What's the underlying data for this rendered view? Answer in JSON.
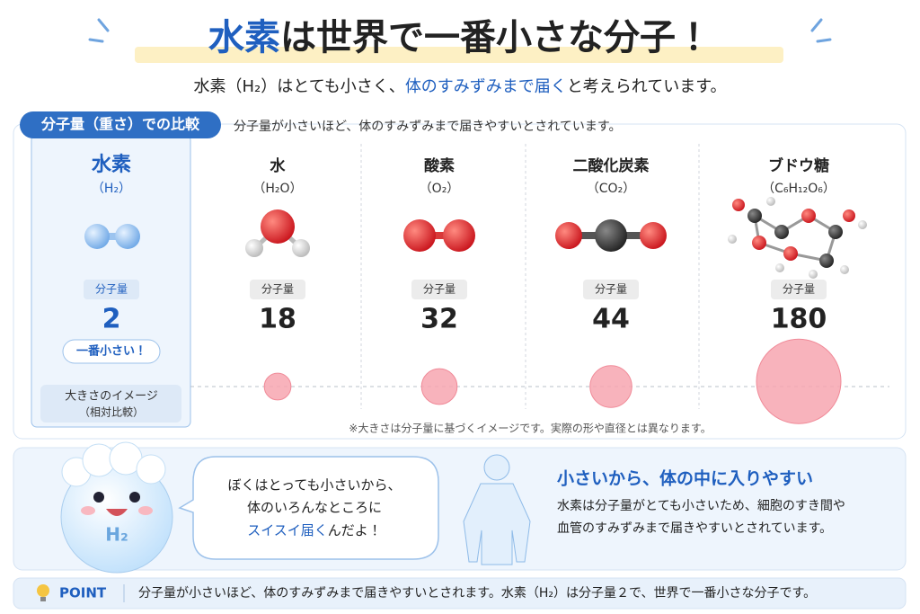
{
  "header": {
    "title_highlight": "水素",
    "title_rest": "は世界で一番小さな分子！",
    "subtitle_start": "水素（H₂）はとても小さく、",
    "subtitle_highlight": "体のすみずみまで届く",
    "subtitle_end": "と考えられています。"
  },
  "comparison": {
    "label": "分子量（重さ）での比較",
    "note": "分子量が小さいほど、体のすみずみまで届きやすいとされています。",
    "molecules": [
      {
        "name": "水素",
        "formula": "（H₂）",
        "weight_label": "分子量",
        "weight": 2
      },
      {
        "name": "水",
        "formula": "（H₂O）",
        "weight_label": "分子量",
        "weight": 18
      },
      {
        "name": "酸素",
        "formula": "（O₂）",
        "weight_label": "分子量",
        "weight": 32
      },
      {
        "name": "二酸化炭素",
        "formula": "（CO₂）",
        "weight_label": "分子量",
        "weight": 44
      },
      {
        "name": "ブドウ糖",
        "formula": "（C₆H₁₂O₆）",
        "weight_label": "分子量",
        "weight": 180
      }
    ],
    "smallest_badge": "一番小さい！",
    "size_label": "大きさのイメージ",
    "size_sublabel": "（相対比較）",
    "footnote": "※大きさは分子量に基づくイメージです。実際の形や直径とは異なります。"
  },
  "character": {
    "label": "H₂",
    "speech": [
      "ぼくはとっても小さいから、",
      "体のいろんなところに"
    ],
    "speech_highlight": "スイスイ届く",
    "speech_end": "んだよ！"
  },
  "explanation": {
    "heading": "小さいから、体の中に入りやすい",
    "lines": [
      "水素は分子量がとても小さいため、細胞のすき間や",
      "血管のすみずみまで届きやすいとされています。"
    ]
  },
  "point": {
    "label": "POINT",
    "text": "分子量が小さいほど、体のすみずみまで届きやすいとされます。水素（H₂）は分子量２で、世界で一番小さな分子です。"
  }
}
